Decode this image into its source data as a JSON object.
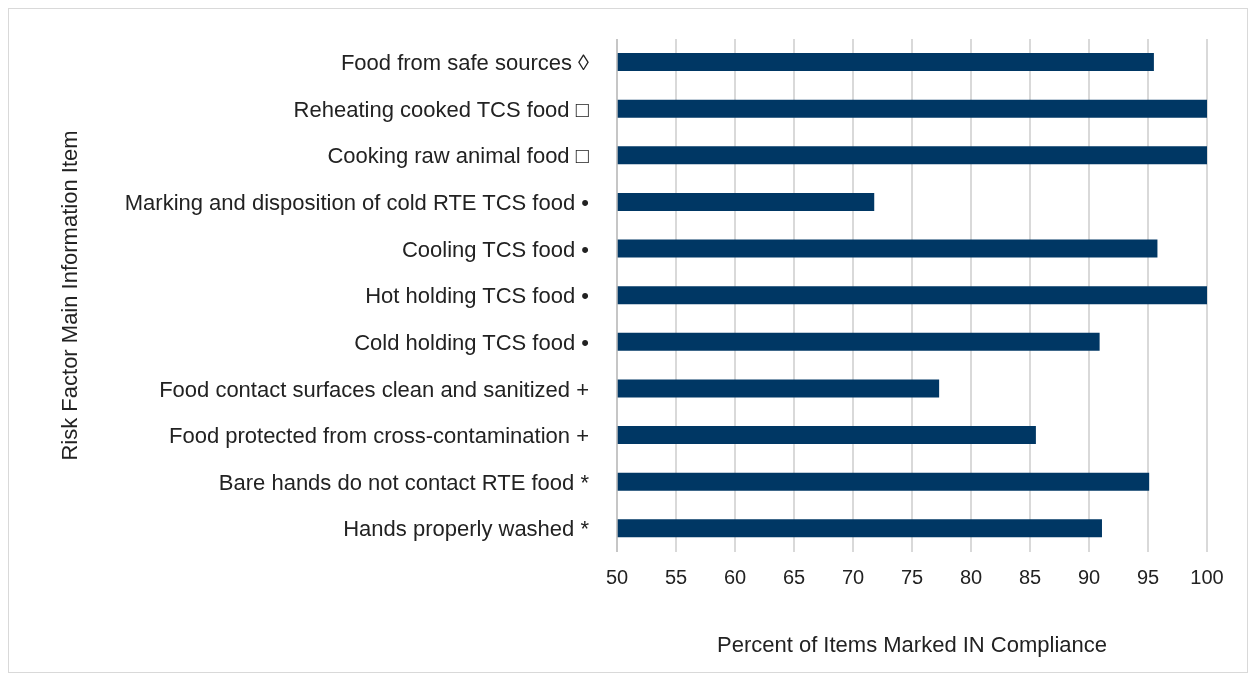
{
  "chart_data": {
    "type": "bar",
    "orientation": "horizontal",
    "xlabel": "Percent of Items Marked IN Compliance",
    "ylabel": "Risk Factor Main Information Item",
    "categories": [
      "Food from safe sources ◊",
      "Reheating cooked TCS food □",
      "Cooking raw animal food □",
      "Marking and disposition of cold RTE TCS food •",
      "Cooling TCS food •",
      "Hot holding TCS food •",
      "Cold holding TCS food •",
      "Food contact surfaces clean and sanitized +",
      "Food protected from cross-contamination +",
      "Bare hands do not contact RTE food *",
      "Hands properly washed *"
    ],
    "values": [
      95.5,
      100,
      100,
      71.8,
      95.8,
      100,
      90.9,
      77.3,
      85.5,
      95.1,
      91.1
    ],
    "color": "#003764",
    "xlim": [
      50,
      100
    ],
    "xticks": [
      50,
      55,
      60,
      65,
      70,
      75,
      80,
      85,
      90,
      95,
      100
    ],
    "grid": "x"
  }
}
